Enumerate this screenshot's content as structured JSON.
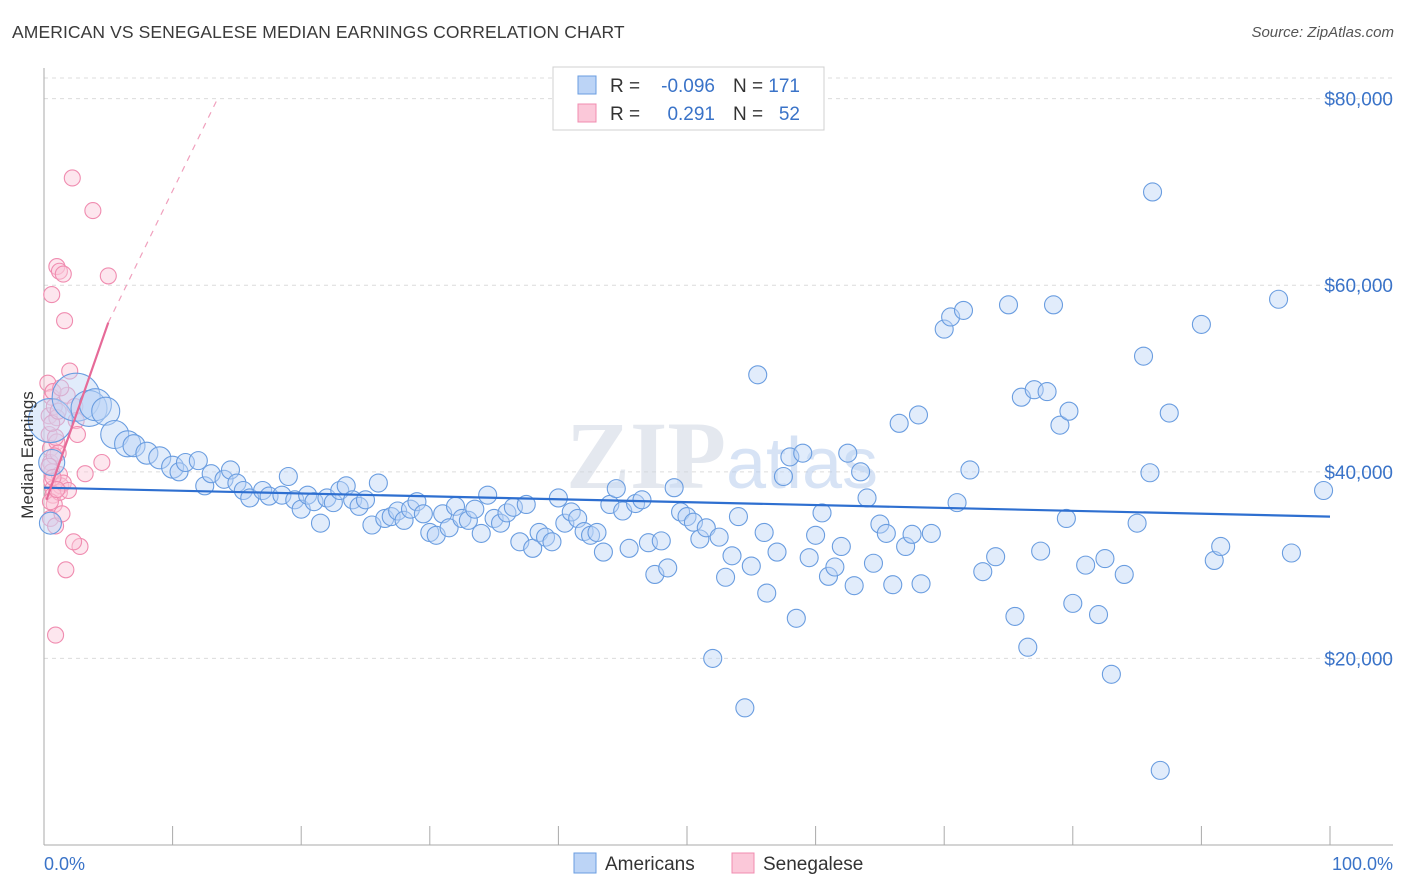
{
  "header": {
    "title": "AMERICAN VS SENEGALESE MEDIAN EARNINGS CORRELATION CHART",
    "source": "Source: ZipAtlas.com"
  },
  "watermark": "ZIPatlas",
  "legend": {
    "rows": [
      {
        "r_label": "R =",
        "r_value": "-0.096",
        "n_label": "N =",
        "n_value": "171",
        "color": "#6a9de0"
      },
      {
        "r_label": "R =",
        "r_value": "0.291",
        "n_label": "N =",
        "n_value": "52",
        "color": "#f08cb0"
      }
    ]
  },
  "bottom_legend": [
    {
      "label": "Americans",
      "color": "#6a9de0"
    },
    {
      "label": "Senegalese",
      "color": "#f08cb0"
    }
  ],
  "chart_data": {
    "type": "scatter",
    "ylabel": "Median Earnings",
    "xlim": [
      0,
      100
    ],
    "ylim": [
      0,
      82000
    ],
    "y_ticks": [
      {
        "value": 20000,
        "label": "$20,000"
      },
      {
        "value": 40000,
        "label": "$40,000"
      },
      {
        "value": 60000,
        "label": "$60,000"
      },
      {
        "value": 80000,
        "label": "$80,000"
      }
    ],
    "x_tick_labels": {
      "min": "0.0%",
      "max": "100.0%"
    },
    "grid": true,
    "series": [
      {
        "name": "Americans",
        "color": "#6a9de0",
        "trend": {
          "x0": 0,
          "y0": 38300,
          "x1": 100,
          "y1": 35200
        },
        "points": [
          [
            0.5,
            45500,
            22
          ],
          [
            0.6,
            41000,
            13
          ],
          [
            0.5,
            34500,
            11
          ],
          [
            2.5,
            48000,
            24
          ],
          [
            3.5,
            46800,
            18
          ],
          [
            4.0,
            47200,
            16
          ],
          [
            4.8,
            46500,
            14
          ],
          [
            5.5,
            44000,
            14
          ],
          [
            6.5,
            43000,
            13
          ],
          [
            7.0,
            42800,
            11
          ],
          [
            8.0,
            42000,
            11
          ],
          [
            9.0,
            41500,
            11
          ],
          [
            10.0,
            40500,
            11
          ],
          [
            10.5,
            40000,
            9
          ],
          [
            11.0,
            41000,
            9
          ],
          [
            12.0,
            41200,
            9
          ],
          [
            12.5,
            38500,
            9
          ],
          [
            13.0,
            39800,
            9
          ],
          [
            14.0,
            39200,
            9
          ],
          [
            14.5,
            40200,
            9
          ],
          [
            15.0,
            38800,
            9
          ],
          [
            15.5,
            38000,
            9
          ],
          [
            16.0,
            37200,
            9
          ],
          [
            17.0,
            38000,
            9
          ],
          [
            17.5,
            37400,
            9
          ],
          [
            18.5,
            37500,
            9
          ],
          [
            19.0,
            39500,
            9
          ],
          [
            19.5,
            37000,
            9
          ],
          [
            20.0,
            36000,
            9
          ],
          [
            20.5,
            37500,
            9
          ],
          [
            21.0,
            36800,
            9
          ],
          [
            21.5,
            34500,
            9
          ],
          [
            22.0,
            37200,
            9
          ],
          [
            22.5,
            36700,
            9
          ],
          [
            23.0,
            38000,
            9
          ],
          [
            23.5,
            38500,
            9
          ],
          [
            24.0,
            37000,
            9
          ],
          [
            24.5,
            36300,
            9
          ],
          [
            25.0,
            37000,
            9
          ],
          [
            25.5,
            34300,
            9
          ],
          [
            26.0,
            38800,
            9
          ],
          [
            26.5,
            35000,
            9
          ],
          [
            27.0,
            35200,
            9
          ],
          [
            27.5,
            35800,
            9
          ],
          [
            28.0,
            34800,
            9
          ],
          [
            28.5,
            36000,
            9
          ],
          [
            29.0,
            36800,
            9
          ],
          [
            29.5,
            35500,
            9
          ],
          [
            30.0,
            33500,
            9
          ],
          [
            30.5,
            33200,
            9
          ],
          [
            31.0,
            35500,
            9
          ],
          [
            31.5,
            34000,
            9
          ],
          [
            32.0,
            36300,
            9
          ],
          [
            32.5,
            35000,
            9
          ],
          [
            33.0,
            34800,
            9
          ],
          [
            33.5,
            36000,
            9
          ],
          [
            34.0,
            33400,
            9
          ],
          [
            34.5,
            37500,
            9
          ],
          [
            35.0,
            35000,
            9
          ],
          [
            35.5,
            34500,
            9
          ],
          [
            36.0,
            35600,
            9
          ],
          [
            36.5,
            36200,
            9
          ],
          [
            37.0,
            32500,
            9
          ],
          [
            37.5,
            36500,
            9
          ],
          [
            38.0,
            31800,
            9
          ],
          [
            38.5,
            33500,
            9
          ],
          [
            39.0,
            33000,
            9
          ],
          [
            39.5,
            32500,
            9
          ],
          [
            40.0,
            37200,
            9
          ],
          [
            40.5,
            34500,
            9
          ],
          [
            41.0,
            35700,
            9
          ],
          [
            41.5,
            35000,
            9
          ],
          [
            42.0,
            33600,
            9
          ],
          [
            42.5,
            33200,
            9
          ],
          [
            43.0,
            33500,
            9
          ],
          [
            43.5,
            31400,
            9
          ],
          [
            44.0,
            36500,
            9
          ],
          [
            44.5,
            38200,
            9
          ],
          [
            45.0,
            35800,
            9
          ],
          [
            45.5,
            31800,
            9
          ],
          [
            46.0,
            36600,
            9
          ],
          [
            46.5,
            37000,
            9
          ],
          [
            47.0,
            32400,
            9
          ],
          [
            47.5,
            29000,
            9
          ],
          [
            48.0,
            32600,
            9
          ],
          [
            48.5,
            29700,
            9
          ],
          [
            49.0,
            38300,
            9
          ],
          [
            49.5,
            35700,
            9
          ],
          [
            50.0,
            35200,
            9
          ],
          [
            50.5,
            34600,
            9
          ],
          [
            51.0,
            32800,
            9
          ],
          [
            51.5,
            34000,
            9
          ],
          [
            52.0,
            20000,
            9
          ],
          [
            52.5,
            33000,
            9
          ],
          [
            53.0,
            28700,
            9
          ],
          [
            53.5,
            31000,
            9
          ],
          [
            54.0,
            35200,
            9
          ],
          [
            54.5,
            14700,
            9
          ],
          [
            55.0,
            29900,
            9
          ],
          [
            55.5,
            50400,
            9
          ],
          [
            56.0,
            33500,
            9
          ],
          [
            56.2,
            27000,
            9
          ],
          [
            57.0,
            31400,
            9
          ],
          [
            57.5,
            39500,
            9
          ],
          [
            58.0,
            41600,
            9
          ],
          [
            58.5,
            24300,
            9
          ],
          [
            59.0,
            42000,
            9
          ],
          [
            59.5,
            30800,
            9
          ],
          [
            60.0,
            33200,
            9
          ],
          [
            60.5,
            35600,
            9
          ],
          [
            61.0,
            28800,
            9
          ],
          [
            61.5,
            29800,
            9
          ],
          [
            62.0,
            32000,
            9
          ],
          [
            62.5,
            42000,
            9
          ],
          [
            63.0,
            27800,
            9
          ],
          [
            63.5,
            40000,
            9
          ],
          [
            64.0,
            37200,
            9
          ],
          [
            64.5,
            30200,
            9
          ],
          [
            65.0,
            34400,
            9
          ],
          [
            65.5,
            33400,
            9
          ],
          [
            66.0,
            27900,
            9
          ],
          [
            66.5,
            45200,
            9
          ],
          [
            67.0,
            32000,
            9
          ],
          [
            67.5,
            33300,
            9
          ],
          [
            68.0,
            46100,
            9
          ],
          [
            68.2,
            28000,
            9
          ],
          [
            69.0,
            33400,
            9
          ],
          [
            70.0,
            55300,
            9
          ],
          [
            70.5,
            56600,
            9
          ],
          [
            71.0,
            36700,
            9
          ],
          [
            71.5,
            57300,
            9
          ],
          [
            72.0,
            40200,
            9
          ],
          [
            73.0,
            29300,
            9
          ],
          [
            74.0,
            30900,
            9
          ],
          [
            75.0,
            57900,
            9
          ],
          [
            75.5,
            24500,
            9
          ],
          [
            76.0,
            48000,
            9
          ],
          [
            76.5,
            21200,
            9
          ],
          [
            77.0,
            48800,
            9
          ],
          [
            77.5,
            31500,
            9
          ],
          [
            78.0,
            48600,
            9
          ],
          [
            78.5,
            57900,
            9
          ],
          [
            79.0,
            45000,
            9
          ],
          [
            79.5,
            35000,
            9
          ],
          [
            79.7,
            46500,
            9
          ],
          [
            80.0,
            25900,
            9
          ],
          [
            81.0,
            30000,
            9
          ],
          [
            82.0,
            24700,
            9
          ],
          [
            82.5,
            30700,
            9
          ],
          [
            83.0,
            18300,
            9
          ],
          [
            84.0,
            29000,
            9
          ],
          [
            85.0,
            34500,
            9
          ],
          [
            85.5,
            52400,
            9
          ],
          [
            86.0,
            39900,
            9
          ],
          [
            86.2,
            70000,
            9
          ],
          [
            86.8,
            8000,
            9
          ],
          [
            87.5,
            46300,
            9
          ],
          [
            90.0,
            55800,
            9
          ],
          [
            91.0,
            30500,
            9
          ],
          [
            91.5,
            32000,
            9
          ],
          [
            96.0,
            58500,
            9
          ],
          [
            97.0,
            31300,
            9
          ],
          [
            99.5,
            38000,
            9
          ]
        ]
      },
      {
        "name": "Senegalese",
        "color": "#f08cb0",
        "trend": {
          "x0": 0.2,
          "y0": 37000,
          "x1": 5.0,
          "y1": 56000
        },
        "trend_ext": {
          "x0": 5.0,
          "y0": 56000,
          "x1": 13.5,
          "y1": 80000
        },
        "points": [
          [
            0.3,
            49500,
            8
          ],
          [
            0.4,
            46000,
            8
          ],
          [
            0.4,
            44000,
            8
          ],
          [
            0.5,
            42500,
            8
          ],
          [
            0.5,
            41000,
            8
          ],
          [
            0.6,
            40000,
            8
          ],
          [
            0.6,
            39000,
            8
          ],
          [
            0.7,
            38200,
            8
          ],
          [
            0.7,
            37500,
            8
          ],
          [
            0.8,
            36500,
            8
          ],
          [
            0.5,
            35000,
            8
          ],
          [
            0.9,
            34200,
            8
          ],
          [
            0.6,
            48000,
            8
          ],
          [
            0.8,
            47000,
            8
          ],
          [
            1.0,
            45800,
            8
          ],
          [
            1.0,
            43200,
            8
          ],
          [
            1.1,
            42000,
            8
          ],
          [
            1.2,
            39700,
            8
          ],
          [
            1.3,
            38500,
            8
          ],
          [
            1.0,
            62000,
            8
          ],
          [
            1.2,
            61500,
            8
          ],
          [
            0.6,
            59000,
            8
          ],
          [
            1.5,
            61200,
            8
          ],
          [
            1.6,
            56200,
            8
          ],
          [
            1.8,
            48200,
            8
          ],
          [
            2.0,
            50800,
            8
          ],
          [
            2.2,
            71500,
            8
          ],
          [
            2.4,
            47000,
            8
          ],
          [
            2.5,
            45500,
            8
          ],
          [
            2.6,
            44000,
            8
          ],
          [
            2.8,
            32000,
            8
          ],
          [
            3.2,
            39800,
            8
          ],
          [
            3.8,
            68000,
            8
          ],
          [
            4.5,
            41000,
            8
          ],
          [
            5.0,
            61000,
            8
          ],
          [
            0.9,
            22500,
            8
          ],
          [
            1.7,
            29500,
            8
          ],
          [
            1.4,
            35500,
            8
          ],
          [
            1.2,
            37800,
            8
          ],
          [
            1.5,
            38800,
            8
          ],
          [
            0.8,
            41700,
            8
          ],
          [
            0.9,
            43700,
            8
          ],
          [
            0.4,
            40600,
            8
          ],
          [
            0.6,
            45200,
            8
          ],
          [
            0.7,
            48600,
            8
          ],
          [
            1.3,
            49000,
            8
          ],
          [
            1.1,
            46500,
            8
          ],
          [
            1.9,
            38000,
            8
          ],
          [
            2.3,
            32500,
            8
          ],
          [
            0.5,
            36800,
            8
          ],
          [
            0.7,
            39400,
            8
          ],
          [
            1.0,
            38100,
            8
          ]
        ]
      }
    ]
  }
}
